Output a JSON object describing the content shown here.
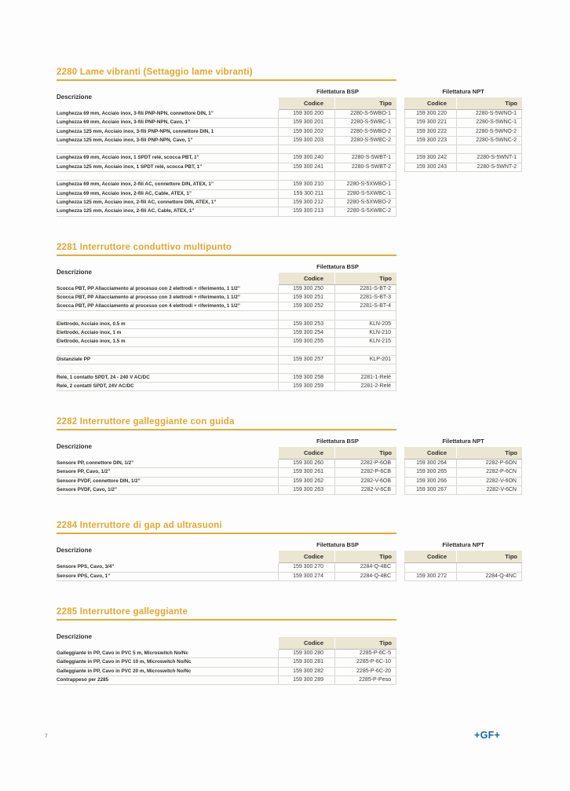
{
  "page": {
    "number": "7",
    "logo": "+GF+"
  },
  "labels": {
    "descrizione": "Descrizione",
    "codice": "Codice",
    "tipo": "Tipo",
    "filettatura_bsp": "Filettatura BSP",
    "filettatura_npt": "Filettatura NPT"
  },
  "colors": {
    "accent_gold": "#e4a72f",
    "header_beige": "#eae6d2",
    "logo_blue": "#16689b"
  },
  "sections": [
    {
      "id": "2280",
      "title": "2280 Lame vibranti (Settaggio lame  vibranti)",
      "has_bsp_header": true,
      "has_npt": true,
      "npt_row_count": 7,
      "rows": [
        {
          "desc": "Lunghezza 69 mm, Acciaio inox, 3-fili PNP-NPN, connettore DIN, 1”",
          "bsp_code": "159 300 200",
          "bsp_type": "2280-S-5WBO-1",
          "npt_code": "159 300 220",
          "npt_type": "2280-S-5WNO-1"
        },
        {
          "desc": "Lunghezza 69 mm, Acciaio inox, 3-fili PNP-NPN, Cavo, 1”",
          "bsp_code": "159 300 201",
          "bsp_type": "2280-S-5WBC-1",
          "npt_code": "159 300 221",
          "npt_type": "2280-S-5WNC-1"
        },
        {
          "desc": "Lunghezza 125 mm, Acciaio inox, 3-fili PNP-NPN, connettore DIN, 1",
          "bsp_code": "159 300 202",
          "bsp_type": "2280-S-5WBO-2",
          "npt_code": "159 300 222",
          "npt_type": "2280-S-5WNO-2"
        },
        {
          "desc": "Lunghezza 125 mm, Acciaio inox, 3-fili PNP-NPN, Cavo, 1”",
          "bsp_code": "159 300 203",
          "bsp_type": "2280-S-5WBC-2",
          "npt_code": "159 300 223",
          "npt_type": "2280-S-5WNC-2"
        },
        {
          "spacer": true
        },
        {
          "desc": "Lunghezza 69 mm, Acciaio inox, 1 SPDT relé, scocca PBT, 1”",
          "bsp_code": "159 300 240",
          "bsp_type": "2280-S-5WBT-1",
          "npt_code": "159 300 242",
          "npt_type": "2280-S-5WNT-1"
        },
        {
          "desc": "Lunghezza 125 mm, Acciaio inox, 1 SPDT relé, scocca PBT, 1”",
          "bsp_code": "159 300 241",
          "bsp_type": "2280-S-5WBT-2",
          "npt_code": "159 300 243",
          "npt_type": "2280-S-5WNT-2"
        },
        {
          "spacer": true
        },
        {
          "desc": "Lunghezza 69 mm, Acciaio inox, 2-fili AC, connettore DIN, ATEX, 1”",
          "bsp_code": "159 300 210",
          "bsp_type": "2280-S-5XWBO-1"
        },
        {
          "desc": "Lunghezza 69 mm, Acciaio inox, 2-fili AC, Cable, ATEX, 1”",
          "bsp_code": "159 300 211",
          "bsp_type": "2280-S-5XWBC-1"
        },
        {
          "desc": "Lunghezza 125 mm, Acciaio inox, 2-fili AC, connettore DIN, ATEX, 1”",
          "bsp_code": "159 300 212",
          "bsp_type": "2280-S-5XWBO-2"
        },
        {
          "desc": "Lunghezza 125 mm, Acciaio inox, 2-fili AC, Cable, ATEX, 1”",
          "bsp_code": "159 300 213",
          "bsp_type": "2280-S-5XWBC-2"
        }
      ]
    },
    {
      "id": "2281",
      "title": "2281 Interruttore conduttivo multipunto",
      "has_bsp_header": true,
      "has_npt": false,
      "npt_row_count": 0,
      "rows": [
        {
          "desc": "Scocca PBT, PP Allacciamento al processo con 2 elettrodi + riferimento, 1 1/2”",
          "bsp_code": "159 300 250",
          "bsp_type": "2281-S-BT-2"
        },
        {
          "desc": "Scocca PBT, PP Allacciamento al processo con 3 elettrodi + riferimento, 1 1/2”",
          "bsp_code": "159 300 251",
          "bsp_type": "2281-S-BT-3"
        },
        {
          "desc": "Scocca PBT, PP Allacciamento al processo con 4 elettrodi + riferimento, 1 1/2”",
          "bsp_code": "159 300 252",
          "bsp_type": "2281-S-BT-4"
        },
        {
          "spacer": true
        },
        {
          "desc": "Elettrodo, Acciaio inox, 0.5 m",
          "bsp_code": "159 300 253",
          "bsp_type": "KLN-205"
        },
        {
          "desc": "Elettrodo, Acciaio inox, 1 m",
          "bsp_code": "159 300 254",
          "bsp_type": "KLN-210"
        },
        {
          "desc": "Elettrodo, Acciaio inox, 1.5 m",
          "bsp_code": "159 300 255",
          "bsp_type": "KLN-215"
        },
        {
          "spacer": true
        },
        {
          "desc": "Distanziale PP",
          "bsp_code": "159 300 257",
          "bsp_type": "KLP-201"
        },
        {
          "spacer": true
        },
        {
          "desc": "Relé, 1 contatto SPDT, 24 - 240 V AC/DC",
          "bsp_code": "159 300 258",
          "bsp_type": "2281-1-Relé"
        },
        {
          "desc": "Relé, 2 contatti SPDT, 24V AC/DC",
          "bsp_code": "159 300 259",
          "bsp_type": "2281-2-Relé"
        }
      ]
    },
    {
      "id": "2282",
      "title": "2282 Interruttore galleggiante con guida",
      "has_bsp_header": true,
      "has_npt": true,
      "npt_row_count": 4,
      "rows": [
        {
          "desc": "Sensore PP, connettore DIN, 1/2”",
          "bsp_code": "159 300 260",
          "bsp_type": "2282-P-6OB",
          "npt_code": "159 300 264",
          "npt_type": "2282-P-6ON"
        },
        {
          "desc": "Sensore PP, Cavo, 1/2”",
          "bsp_code": "159 300 261",
          "bsp_type": "2282-P-6CB",
          "npt_code": "159 300 265",
          "npt_type": "2282-P-6CN"
        },
        {
          "desc": "Sensore PVDF, connettore DIN, 1/2”",
          "bsp_code": "159 300 262",
          "bsp_type": "2282-V-6OB",
          "npt_code": "159 300 266",
          "npt_type": "2282-V-6ON"
        },
        {
          "desc": "Sensore PVDF, Cavo, 1/2”",
          "bsp_code": "159 300 263",
          "bsp_type": "2282-V-6CB",
          "npt_code": "159 300 267",
          "npt_type": "2282-V-6CN"
        }
      ]
    },
    {
      "id": "2284",
      "title": "2284 Interruttore di gap ad ultrasuoni",
      "has_bsp_header": true,
      "has_npt": true,
      "npt_row_count": 2,
      "rows": [
        {
          "desc": "Sensore PPS, Cavo, 3/4”",
          "bsp_code": "159 300 270",
          "bsp_type": "2284-Q-4BC",
          "npt_code": "",
          "npt_type": ""
        },
        {
          "desc": "Sensore PPS, Cavo, 1”",
          "bsp_code": "159 300 274",
          "bsp_type": "2284-Q-4BC",
          "npt_code": "159 300 272",
          "npt_type": "2284-Q-4NC"
        }
      ]
    },
    {
      "id": "2285",
      "title": "2285 Interruttore galleggiante",
      "has_bsp_header": false,
      "has_npt": false,
      "npt_row_count": 0,
      "rows": [
        {
          "desc": "Galleggiante in PP, Cavo in PVC 5 m, Microswitch No/Nc",
          "bsp_code": "159 300 280",
          "bsp_type": "2285-P-6C-5"
        },
        {
          "desc": "Galleggiante in PP, Cavo in PVC 10 m, Microswitch No/Nc",
          "bsp_code": "159 300 281",
          "bsp_type": "2285-P-6C-10"
        },
        {
          "desc": "Galleggiante in PP, Cavo in PVC 20 m, Microswitch No/Nc",
          "bsp_code": "159 300 282",
          "bsp_type": "2285-P-6C-20"
        },
        {
          "desc": "Contrappeso per 2285",
          "bsp_code": "159 300 289",
          "bsp_type": "2285-P-Peso"
        }
      ]
    }
  ]
}
